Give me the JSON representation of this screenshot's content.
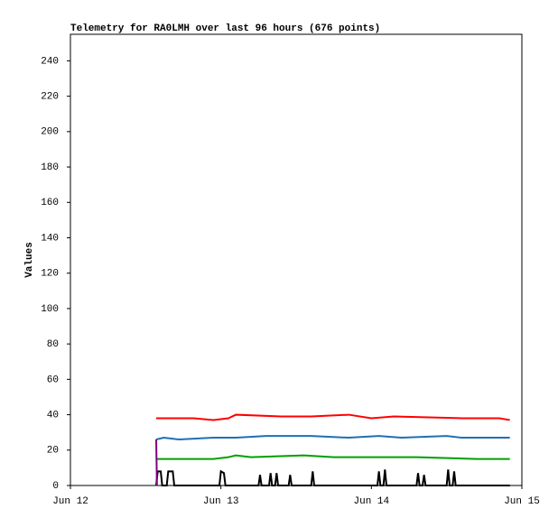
{
  "chart_data": {
    "type": "line",
    "title": "Telemetry for RA0LMH over last 96 hours (676 points)",
    "y_label": "Values",
    "xlim": [
      12,
      15
    ],
    "xticks": [
      {
        "value": 12,
        "label": "Jun 12"
      },
      {
        "value": 13,
        "label": "Jun 13"
      },
      {
        "value": 14,
        "label": "Jun 14"
      },
      {
        "value": 15,
        "label": "Jun 15"
      }
    ],
    "ylim": [
      0,
      255
    ],
    "yticks": [
      0,
      20,
      40,
      60,
      80,
      100,
      120,
      140,
      160,
      180,
      200,
      220,
      240
    ],
    "series": [
      {
        "color": "#ff0000",
        "x": [
          12.57,
          12.82,
          12.95,
          13.05,
          13.1,
          13.4,
          13.6,
          13.85,
          14.0,
          14.15,
          14.6,
          14.85,
          14.92
        ],
        "values": [
          38,
          38,
          37,
          38,
          40,
          39,
          39,
          40,
          38,
          39,
          38,
          38,
          37
        ]
      },
      {
        "color": "#1f6fb4",
        "x": [
          12.57,
          12.62,
          12.72,
          12.95,
          13.1,
          13.3,
          13.5,
          13.6,
          13.85,
          14.05,
          14.2,
          14.5,
          14.6,
          14.92
        ],
        "values": [
          26,
          27,
          26,
          27,
          27,
          28,
          28,
          28,
          27,
          28,
          27,
          28,
          27,
          27
        ]
      },
      {
        "color": "#00a000",
        "x": [
          12.57,
          12.95,
          13.05,
          13.1,
          13.2,
          13.55,
          13.75,
          14.3,
          14.7,
          14.92
        ],
        "values": [
          15,
          15,
          16,
          17,
          16,
          17,
          16,
          16,
          15,
          15
        ]
      },
      {
        "color": "#000000",
        "x": [
          12.57,
          12.58,
          12.6,
          12.61,
          12.64,
          12.65,
          12.68,
          12.69,
          12.99,
          13.0,
          13.02,
          13.03,
          13.25,
          13.26,
          13.27,
          13.32,
          13.33,
          13.34,
          13.36,
          13.37,
          13.38,
          13.45,
          13.46,
          13.47,
          13.6,
          13.61,
          13.62,
          14.04,
          14.05,
          14.06,
          14.08,
          14.09,
          14.1,
          14.3,
          14.31,
          14.32,
          14.34,
          14.35,
          14.36,
          14.5,
          14.51,
          14.52,
          14.54,
          14.55,
          14.56,
          14.92
        ],
        "values": [
          0,
          8,
          8,
          0,
          0,
          8,
          8,
          0,
          0,
          8,
          7,
          0,
          0,
          6,
          0,
          0,
          7,
          0,
          0,
          7,
          0,
          0,
          6,
          0,
          0,
          8,
          0,
          0,
          8,
          0,
          0,
          9,
          0,
          0,
          7,
          0,
          0,
          6,
          0,
          0,
          9,
          0,
          0,
          8,
          0,
          0
        ]
      },
      {
        "color": "#800080",
        "x": [
          12.57,
          12.575
        ],
        "values": [
          26,
          0
        ]
      }
    ]
  }
}
